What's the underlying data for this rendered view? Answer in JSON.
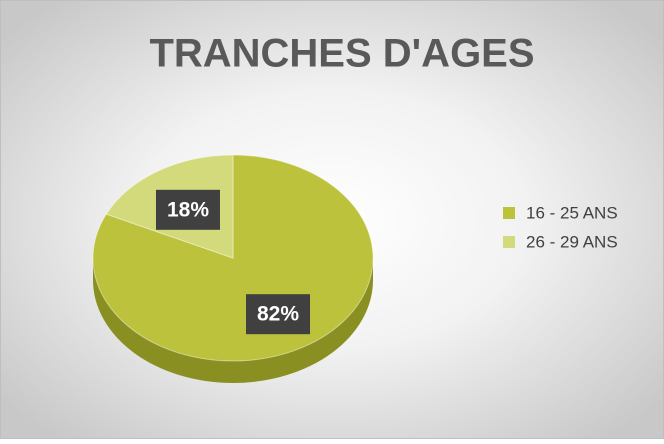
{
  "chart_data": {
    "type": "pie",
    "title": "TRANCHES D'AGES",
    "categories": [
      "16 - 25 ANS",
      "26 - 29 ANS"
    ],
    "values": [
      82,
      18
    ],
    "value_labels": [
      "82%",
      "18%"
    ],
    "colors": [
      "#bcc23c",
      "#d3da7c"
    ],
    "side_colors": [
      "#8a8f22",
      "#a3a955"
    ],
    "legend": "right"
  }
}
